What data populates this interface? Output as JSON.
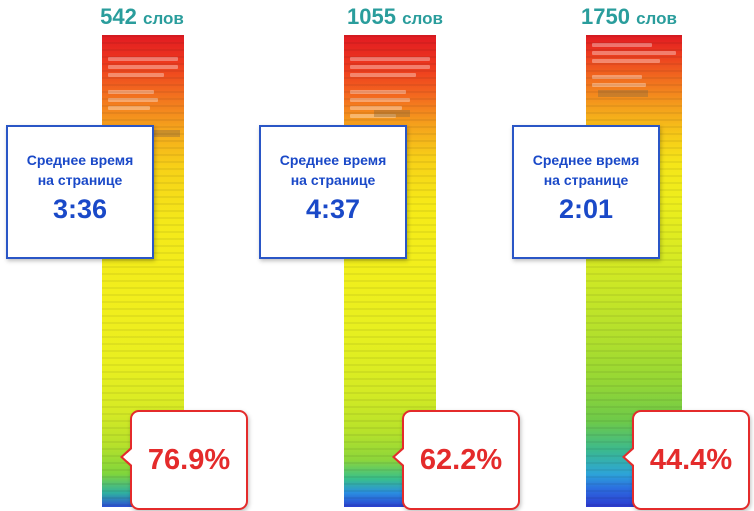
{
  "columns": [
    {
      "word_count": "542",
      "word_unit": "слов",
      "avg_time_label_line1": "Среднее время",
      "avg_time_label_line2": "на странице",
      "avg_time": "3:36",
      "percentage": "76.9%"
    },
    {
      "word_count": "1055",
      "word_unit": "слов",
      "avg_time_label_line1": "Среднее время",
      "avg_time_label_line2": "на странице",
      "avg_time": "4:37",
      "percentage": "62.2%"
    },
    {
      "word_count": "1750",
      "word_unit": "слов",
      "avg_time_label_line1": "Среднее время",
      "avg_time_label_line2": "на странице",
      "avg_time": "2:01",
      "percentage": "44.4%"
    }
  ],
  "colors": {
    "heading": "#2a9d9c",
    "time_box": "#1a49c8",
    "percent_box": "#e42b2b"
  }
}
